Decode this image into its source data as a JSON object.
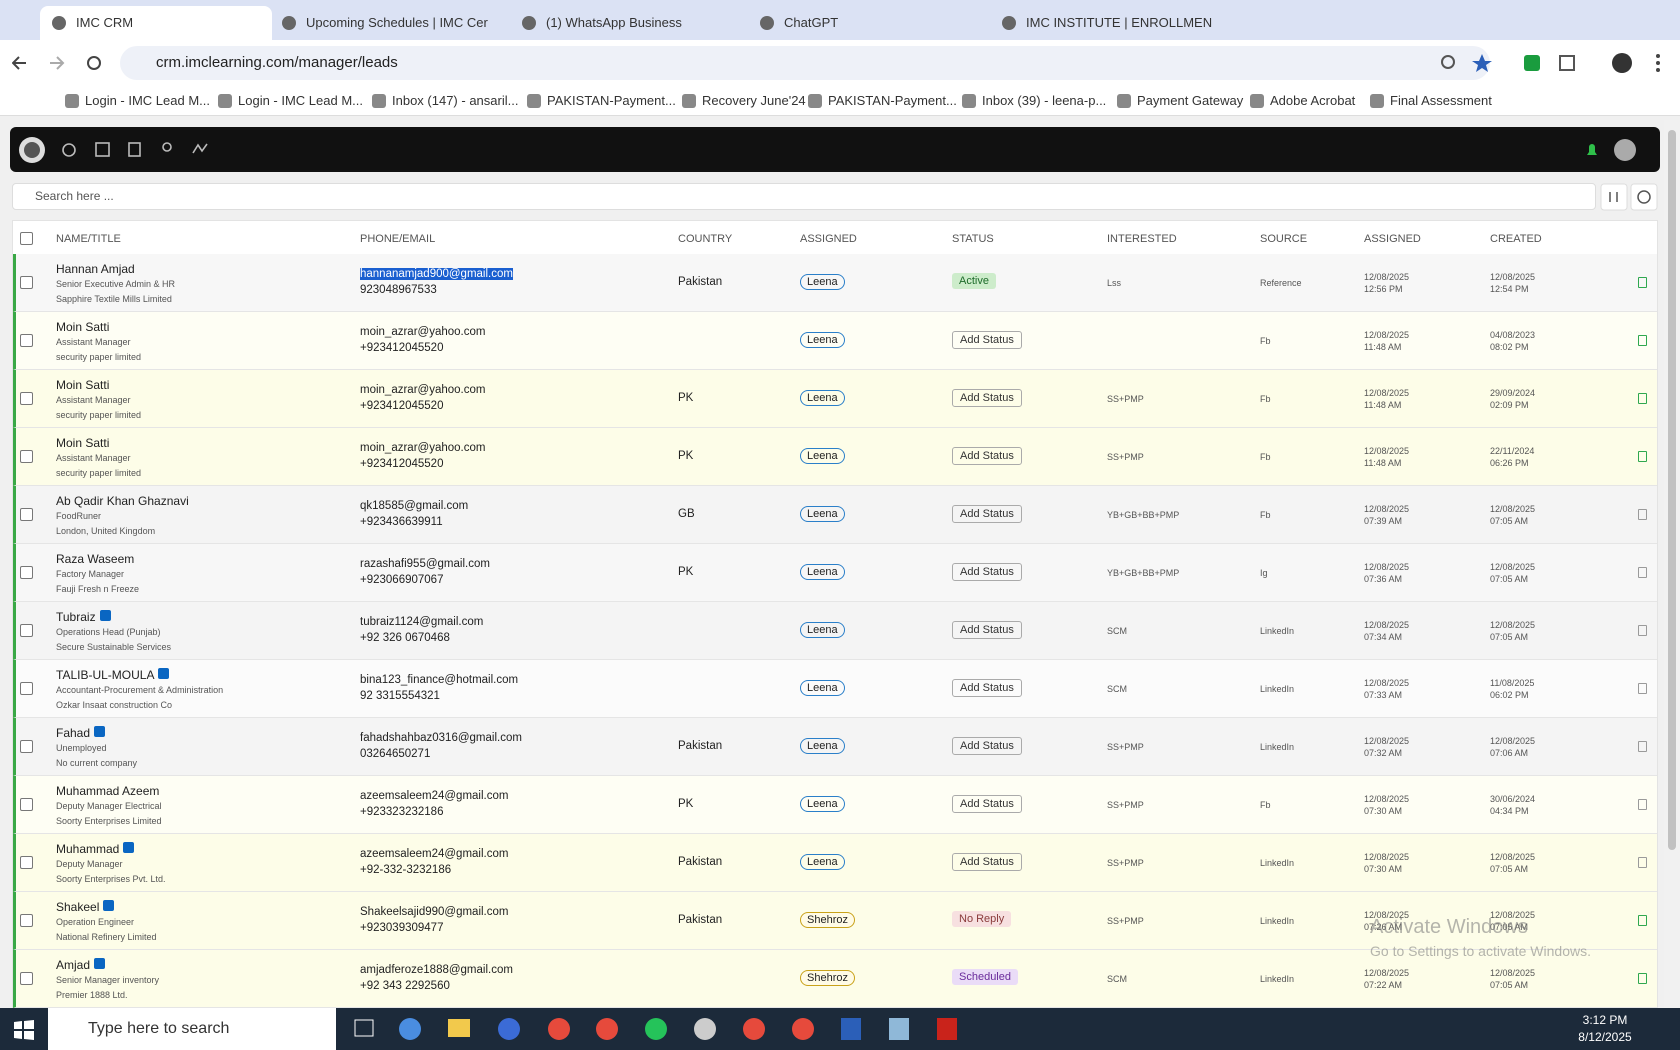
{
  "browser": {
    "tabs": [
      "IMC CRM",
      "Upcoming Schedules | IMC Cer",
      "(1) WhatsApp Business",
      "ChatGPT",
      "IMC INSTITUTE | ENROLLMENT"
    ],
    "url": "crm.imclearning.com/manager/leads",
    "bookmarks": [
      "Login - IMC Lead M...",
      "Login - IMC Lead M...",
      "Inbox (147) - ansaril...",
      "PAKISTAN-Payment...",
      "Recovery June'24",
      "PAKISTAN-Payment...",
      "Inbox (39) - leena-p...",
      "Payment Gateway",
      "Adobe Acrobat",
      "Final Assessment"
    ]
  },
  "app": {
    "search_placeholder": "Search here ...",
    "headers": [
      "NAME/TITLE",
      "PHONE/EMAIL",
      "COUNTRY",
      "ASSIGNED",
      "STATUS",
      "INTERESTED",
      "SOURCE",
      "ASSIGNED",
      "CREATED"
    ],
    "rows": [
      {
        "name": "Hannan Amjad",
        "title": "Senior Executive Admin & HR",
        "company": "Sapphire Textile Mills Limited",
        "email": "hannanamjad900@gmail.com",
        "email_selected": true,
        "phone": "923048967533",
        "country": "Pakistan",
        "assigned_to": "Leena",
        "status": "Active",
        "interested": "Lss",
        "source": "Reference",
        "assigned_date": "12/08/2025",
        "assigned_time": "12:56 PM",
        "created_date": "12/08/2025",
        "created_time": "12:54 PM",
        "row_color": "#f7f7f7",
        "note_color": "#2fa84f"
      },
      {
        "name": "Moin Satti",
        "title": "Assistant Manager",
        "company": "security paper limited",
        "email": "moin_azrar@yahoo.com",
        "phone": "+923412045520",
        "country": null,
        "assigned_to": "Leena",
        "status": "Add Status",
        "interested": null,
        "source": "Fb",
        "assigned_date": "12/08/2025",
        "assigned_time": "11:48 AM",
        "created_date": "04/08/2023",
        "created_time": "08:02 PM",
        "row_color": "#fefef4",
        "note_color": "#2fa84f"
      },
      {
        "name": "Moin Satti",
        "title": "Assistant Manager",
        "company": "security paper limited",
        "email": "moin_azrar@yahoo.com",
        "phone": "+923412045520",
        "country": "PK",
        "assigned_to": "Leena",
        "status": "Add Status",
        "interested": "SS+PMP",
        "source": "Fb",
        "assigned_date": "12/08/2025",
        "assigned_time": "11:48 AM",
        "created_date": "29/09/2024",
        "created_time": "02:09 PM",
        "row_color": "#fdfde8",
        "note_color": "#2fa84f"
      },
      {
        "name": "Moin Satti",
        "title": "Assistant Manager",
        "company": "security paper limited",
        "email": "moin_azrar@yahoo.com",
        "phone": "+923412045520",
        "country": "PK",
        "assigned_to": "Leena",
        "status": "Add Status",
        "interested": "SS+PMP",
        "source": "Fb",
        "assigned_date": "12/08/2025",
        "assigned_time": "11:48 AM",
        "created_date": "22/11/2024",
        "created_time": "06:26 PM",
        "row_color": "#fdfde8",
        "note_color": "#2fa84f"
      },
      {
        "name": "Ab Qadir Khan Ghaznavi",
        "title": "FoodRuner",
        "company": "London, United Kingdom",
        "email": "qk18585@gmail.com",
        "phone": "+923436639911",
        "country": "GB",
        "assigned_to": "Leena",
        "status": "Add Status",
        "interested": "YB+GB+BB+PMP",
        "source": "Fb",
        "assigned_date": "12/08/2025",
        "assigned_time": "07:39 AM",
        "created_date": "12/08/2025",
        "created_time": "07:05 AM",
        "row_color": "#f4f4f4",
        "note_color": "#9a9a9a"
      },
      {
        "name": "Raza Waseem",
        "title": "Factory Manager",
        "company": "Fauji Fresh n Freeze",
        "email": "razashafi955@gmail.com",
        "phone": "+923066907067",
        "country": "PK",
        "assigned_to": "Leena",
        "status": "Add Status",
        "interested": "YB+GB+BB+PMP",
        "source": "Ig",
        "assigned_date": "12/08/2025",
        "assigned_time": "07:36 AM",
        "created_date": "12/08/2025",
        "created_time": "07:05 AM",
        "row_color": "#f7f7f7",
        "note_color": "#9a9a9a"
      },
      {
        "name": "Tubraiz",
        "linkedin": true,
        "title": "Operations Head (Punjab)",
        "company": "Secure Sustainable Services",
        "email": "tubraiz1124@gmail.com",
        "phone": "+92 326 0670468",
        "country": null,
        "assigned_to": "Leena",
        "status": "Add Status",
        "interested": "SCM",
        "source": "LinkedIn",
        "assigned_date": "12/08/2025",
        "assigned_time": "07:34 AM",
        "created_date": "12/08/2025",
        "created_time": "07:05 AM",
        "row_color": "#f4f4f4",
        "note_color": "#9a9a9a"
      },
      {
        "name": "TALIB-UL-MOULA",
        "linkedin": true,
        "title": "Accountant-Procurement & Administration",
        "company": "Ozkar Insaat construction Co",
        "email": "bina123_finance@hotmail.com",
        "phone": "92 3315554321",
        "country": null,
        "assigned_to": "Leena",
        "status": "Add Status",
        "interested": "SCM",
        "source": "LinkedIn",
        "assigned_date": "12/08/2025",
        "assigned_time": "07:33 AM",
        "created_date": "11/08/2025",
        "created_time": "06:02 PM",
        "row_color": "#fbfbfb",
        "note_color": "#9a9a9a"
      },
      {
        "name": "Fahad",
        "linkedin": true,
        "title": "Unemployed",
        "company": "No current company",
        "email": "fahadshahbaz0316@gmail.com",
        "phone": "03264650271",
        "country": "Pakistan",
        "assigned_to": "Leena",
        "status": "Add Status",
        "interested": "SS+PMP",
        "source": "LinkedIn",
        "assigned_date": "12/08/2025",
        "assigned_time": "07:32 AM",
        "created_date": "12/08/2025",
        "created_time": "07:06 AM",
        "row_color": "#f4f4f4",
        "note_color": "#9a9a9a"
      },
      {
        "name": "Muhammad Azeem",
        "title": "Deputy Manager Electrical",
        "company": "Soorty Enterprises Limited",
        "email": "azeemsaleem24@gmail.com",
        "phone": "+923323232186",
        "country": "PK",
        "assigned_to": "Leena",
        "status": "Add Status",
        "interested": "SS+PMP",
        "source": "Fb",
        "assigned_date": "12/08/2025",
        "assigned_time": "07:30 AM",
        "created_date": "30/06/2024",
        "created_time": "04:34 PM",
        "row_color": "#fefef4",
        "note_color": "#9a9a9a"
      },
      {
        "name": "Muhammad",
        "linkedin": true,
        "title": "Deputy Manager",
        "company": "Soorty Enterprises Pvt. Ltd.",
        "email": "azeemsaleem24@gmail.com",
        "phone": "+92-332-3232186",
        "country": "Pakistan",
        "assigned_to": "Leena",
        "status": "Add Status",
        "interested": "SS+PMP",
        "source": "LinkedIn",
        "assigned_date": "12/08/2025",
        "assigned_time": "07:30 AM",
        "created_date": "12/08/2025",
        "created_time": "07:05 AM",
        "row_color": "#fdfde8",
        "note_color": "#9a9a9a"
      },
      {
        "name": "Shakeel",
        "linkedin": true,
        "title": "Operation Engineer",
        "company": "National Refinery Limited",
        "email": "Shakeelsajid990@gmail.com",
        "phone": "+923039309477",
        "country": "Pakistan",
        "assigned_to": "Shehroz",
        "status": "No Reply",
        "interested": "SS+PMP",
        "source": "LinkedIn",
        "assigned_date": "12/08/2025",
        "assigned_time": "07:26 AM",
        "created_date": "12/08/2025",
        "created_time": "07:05 AM",
        "row_color": "#fdfde8",
        "note_color": "#2fa84f"
      },
      {
        "name": "Amjad",
        "linkedin": true,
        "title": "Senior Manager inventory",
        "company": "Premier 1888 Ltd.",
        "email": "amjadferoze1888@gmail.com",
        "phone": "+92 343 2292560",
        "country": null,
        "assigned_to": "Shehroz",
        "status": "Scheduled",
        "interested": "SCM",
        "source": "LinkedIn",
        "assigned_date": "12/08/2025",
        "assigned_time": "07:22 AM",
        "created_date": "12/08/2025",
        "created_time": "07:05 AM",
        "row_color": "#fdfde8",
        "note_color": "#2fa84f"
      }
    ]
  },
  "watermark": {
    "title": "Activate Windows",
    "subtitle": "Go to Settings to activate Windows."
  },
  "taskbar": {
    "search_placeholder": "Type here to search",
    "time": "3:12 PM",
    "date": "8/12/2025"
  }
}
